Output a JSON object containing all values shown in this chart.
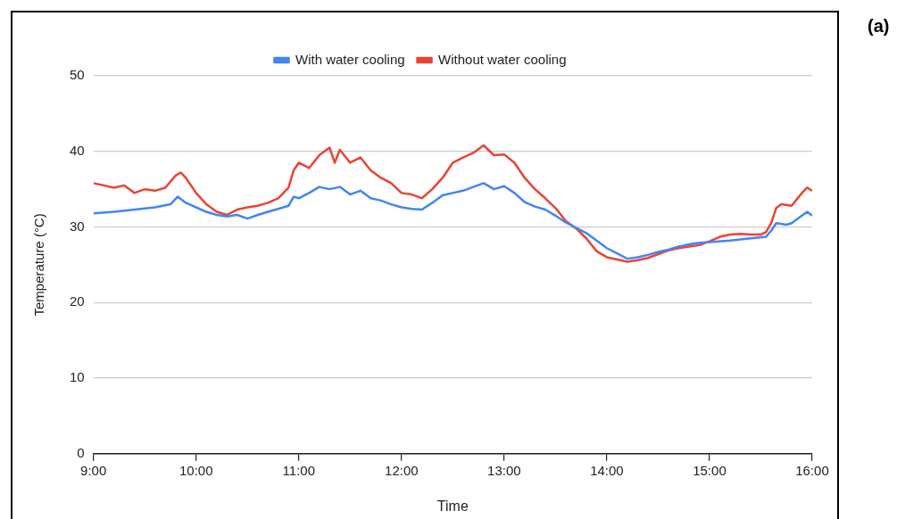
{
  "chart_data": {
    "type": "line",
    "xlabel": "Time",
    "ylabel": "Temperature (°C)",
    "annotations": [
      "(a)"
    ],
    "xlim": [
      9,
      16
    ],
    "xticks": [
      {
        "value": 9,
        "label": "9:00"
      },
      {
        "value": 10,
        "label": "10:00"
      },
      {
        "value": 11,
        "label": "11:00"
      },
      {
        "value": 12,
        "label": "12:00"
      },
      {
        "value": 13,
        "label": "13:00"
      },
      {
        "value": 14,
        "label": "14:00"
      },
      {
        "value": 15,
        "label": "15:00"
      },
      {
        "value": 16,
        "label": "16:00"
      }
    ],
    "ylim": [
      0,
      50
    ],
    "yticks": [
      0,
      10,
      20,
      30,
      40,
      50
    ],
    "grid": "y",
    "legend": "top",
    "marker": "none",
    "line_style": "solid",
    "series": [
      {
        "name": "With water cooling",
        "color": "#4285f4",
        "x": [
          9.0,
          9.2,
          9.4,
          9.6,
          9.75,
          9.82,
          9.9,
          10.0,
          10.1,
          10.2,
          10.3,
          10.4,
          10.5,
          10.6,
          10.7,
          10.8,
          10.9,
          10.95,
          11.0,
          11.1,
          11.2,
          11.3,
          11.4,
          11.5,
          11.6,
          11.7,
          11.8,
          11.9,
          12.0,
          12.1,
          12.2,
          12.3,
          12.4,
          12.5,
          12.6,
          12.7,
          12.8,
          12.9,
          13.0,
          13.1,
          13.2,
          13.3,
          13.4,
          13.5,
          13.6,
          13.7,
          13.8,
          13.9,
          14.0,
          14.1,
          14.2,
          14.3,
          14.4,
          14.5,
          14.6,
          14.7,
          14.8,
          14.9,
          15.0,
          15.2,
          15.4,
          15.55,
          15.6,
          15.65,
          15.75,
          15.8,
          15.9,
          15.95,
          16.0
        ],
        "values": [
          31.8,
          32.0,
          32.3,
          32.6,
          33.0,
          34.0,
          33.2,
          32.6,
          32.0,
          31.6,
          31.4,
          31.6,
          31.1,
          31.6,
          32.0,
          32.4,
          32.8,
          34.0,
          33.8,
          34.5,
          35.3,
          35.0,
          35.3,
          34.3,
          34.8,
          33.8,
          33.5,
          33.0,
          32.6,
          32.4,
          32.3,
          33.2,
          34.2,
          34.5,
          34.8,
          35.3,
          35.8,
          35.0,
          35.4,
          34.5,
          33.3,
          32.7,
          32.3,
          31.5,
          30.6,
          29.9,
          29.2,
          28.2,
          27.2,
          26.5,
          25.8,
          26.0,
          26.3,
          26.7,
          27.0,
          27.4,
          27.7,
          27.9,
          28.0,
          28.2,
          28.5,
          28.7,
          29.5,
          30.5,
          30.3,
          30.5,
          31.5,
          32.0,
          31.5
        ]
      },
      {
        "name": "Without water cooling",
        "color": "#ea4335",
        "x": [
          9.0,
          9.1,
          9.2,
          9.3,
          9.4,
          9.5,
          9.6,
          9.7,
          9.8,
          9.85,
          9.9,
          10.0,
          10.1,
          10.2,
          10.3,
          10.4,
          10.5,
          10.6,
          10.7,
          10.8,
          10.9,
          10.95,
          11.0,
          11.1,
          11.2,
          11.3,
          11.35,
          11.4,
          11.5,
          11.6,
          11.7,
          11.8,
          11.9,
          12.0,
          12.1,
          12.2,
          12.3,
          12.4,
          12.5,
          12.6,
          12.7,
          12.8,
          12.9,
          13.0,
          13.1,
          13.2,
          13.3,
          13.4,
          13.5,
          13.6,
          13.7,
          13.8,
          13.9,
          14.0,
          14.1,
          14.2,
          14.3,
          14.4,
          14.5,
          14.6,
          14.7,
          14.8,
          14.9,
          15.0,
          15.1,
          15.2,
          15.3,
          15.4,
          15.5,
          15.55,
          15.6,
          15.65,
          15.7,
          15.8,
          15.9,
          15.95,
          16.0
        ],
        "values": [
          35.8,
          35.5,
          35.2,
          35.5,
          34.5,
          35.0,
          34.8,
          35.2,
          36.8,
          37.2,
          36.5,
          34.5,
          33.0,
          32.0,
          31.6,
          32.3,
          32.6,
          32.8,
          33.2,
          33.8,
          35.2,
          37.5,
          38.5,
          37.8,
          39.5,
          40.5,
          38.5,
          40.2,
          38.5,
          39.2,
          37.5,
          36.5,
          35.8,
          34.5,
          34.3,
          33.8,
          35.0,
          36.5,
          38.5,
          39.2,
          39.8,
          40.8,
          39.5,
          39.6,
          38.5,
          36.5,
          35.0,
          33.8,
          32.5,
          30.8,
          29.8,
          28.5,
          26.8,
          26.0,
          25.7,
          25.4,
          25.6,
          25.9,
          26.4,
          26.9,
          27.2,
          27.4,
          27.6,
          28.1,
          28.7,
          29.0,
          29.1,
          29.0,
          29.0,
          29.3,
          30.5,
          32.5,
          33.0,
          32.8,
          34.5,
          35.2,
          34.8
        ]
      }
    ]
  }
}
